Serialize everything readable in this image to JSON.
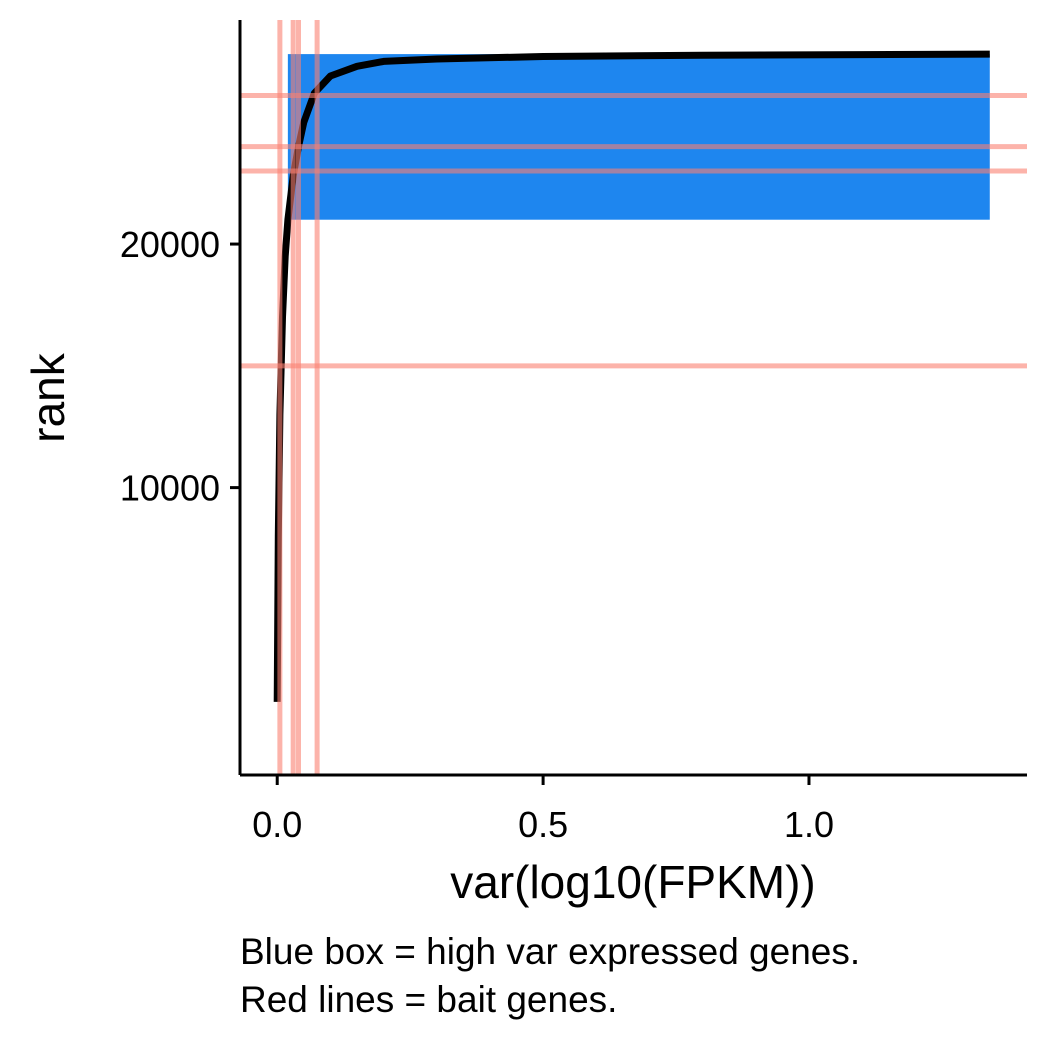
{
  "chart_data": {
    "type": "line",
    "xlabel": "var(log10(FPKM))",
    "ylabel": "rank",
    "xlim": [
      -0.07,
      1.41
    ],
    "ylim": [
      -1800,
      29200
    ],
    "x_ticks": [
      {
        "value": 0.0,
        "label": "0.0"
      },
      {
        "value": 0.5,
        "label": "0.5"
      },
      {
        "value": 1.0,
        "label": "1.0"
      }
    ],
    "y_ticks": [
      {
        "value": 10000,
        "label": "10000"
      },
      {
        "value": 20000,
        "label": "20000"
      }
    ],
    "grid": false,
    "legend": "none",
    "series": [
      {
        "color": "#000000",
        "points": [
          {
            "x": 0.0,
            "y": 1200
          },
          {
            "x": 0.002,
            "y": 8000
          },
          {
            "x": 0.005,
            "y": 13000
          },
          {
            "x": 0.01,
            "y": 17000
          },
          {
            "x": 0.015,
            "y": 19500
          },
          {
            "x": 0.02,
            "y": 21000
          },
          {
            "x": 0.03,
            "y": 22800
          },
          {
            "x": 0.04,
            "y": 24000
          },
          {
            "x": 0.05,
            "y": 25000
          },
          {
            "x": 0.07,
            "y": 26200
          },
          {
            "x": 0.1,
            "y": 26900
          },
          {
            "x": 0.15,
            "y": 27300
          },
          {
            "x": 0.2,
            "y": 27500
          },
          {
            "x": 0.3,
            "y": 27600
          },
          {
            "x": 0.5,
            "y": 27700
          },
          {
            "x": 0.8,
            "y": 27750
          },
          {
            "x": 1.1,
            "y": 27780
          },
          {
            "x": 1.34,
            "y": 27800
          }
        ]
      }
    ],
    "high_var_box": {
      "color": "#1E86EF",
      "xmin": 0.02,
      "xmax": 1.34,
      "ymin": 21000,
      "ymax": 27800
    },
    "bait_lines": {
      "color": "#FA8072",
      "vertical_x": [
        0.005,
        0.03,
        0.04,
        0.075
      ],
      "horizontal_y": [
        15000,
        23000,
        24000,
        26100
      ]
    }
  },
  "caption": {
    "line1": "Blue box = high var expressed genes.",
    "line2": "Red lines = bait genes."
  }
}
